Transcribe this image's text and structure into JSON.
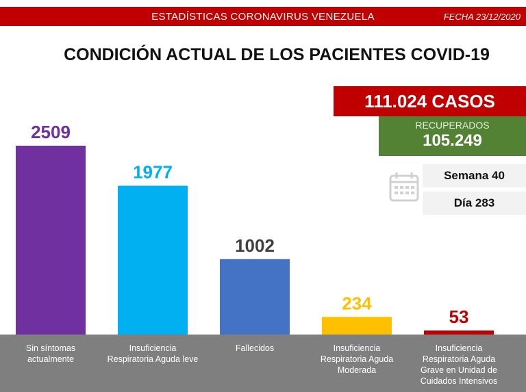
{
  "header": {
    "title": "ESTADÍSTICAS CORONAVIRUS VENEZUELA",
    "date": "FECHA 23/12/2020"
  },
  "summary": {
    "cases": "111.024 CASOS",
    "recovered_label": "RECUPERADOS",
    "recovered_value": "105.249",
    "week": "Semana 40",
    "day": "Día 283"
  },
  "icons": {
    "calendar": "calendar-icon"
  },
  "chart_data": {
    "type": "bar",
    "title": "CONDICIÓN ACTUAL DE LOS PACIENTES COVID-19",
    "categories": [
      "Sin síntomas\nactualmente",
      "Insuficiencia\nRespiratoria Aguda leve",
      "Fallecidos",
      "Insuficiencia\nRespiratoria Aguda\nModerada",
      "Insuficiencia\nRespiratoria Aguda\nGrave en Unidad de\nCuidados Intensivos"
    ],
    "values": [
      2509,
      1977,
      1002,
      234,
      53
    ],
    "value_labels": [
      "2509",
      "1977",
      "1002",
      "234",
      "53"
    ],
    "colors": [
      "#7030a0",
      "#00b0f0",
      "#4472c4",
      "#ffc000",
      "#c00000"
    ],
    "label_colors": [
      "#7030a0",
      "#00b0f0",
      "#404040",
      "#ffc000",
      "#c00000"
    ],
    "xlabel": "",
    "ylabel": "",
    "ylim": [
      0,
      2509
    ]
  }
}
